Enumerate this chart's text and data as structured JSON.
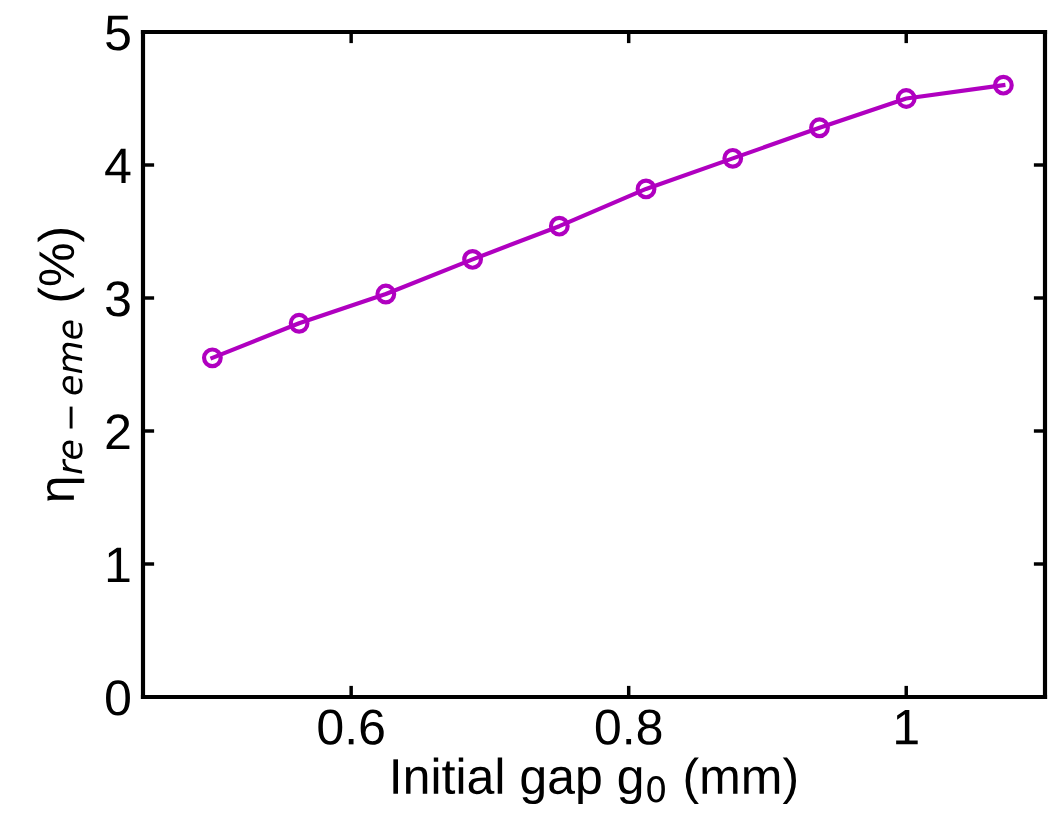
{
  "chart_data": {
    "type": "line",
    "xlabel": "Initial gap g$_{0}$ (mm)",
    "ylabel": "η$_{re−eme}$ (%)",
    "x": [
      0.5,
      0.5625,
      0.625,
      0.6875,
      0.75,
      0.8125,
      0.875,
      0.9375,
      1.0,
      1.07
    ],
    "series": [
      {
        "color": "#b000c0",
        "values": [
          2.55,
          2.81,
          3.03,
          3.29,
          3.54,
          3.82,
          4.05,
          4.28,
          4.5,
          4.6
        ]
      }
    ],
    "xlim": [
      0.45,
      1.1
    ],
    "xticks": [
      0.6,
      0.8,
      1
    ],
    "ylim": [
      0,
      5
    ],
    "yticks": [
      0,
      1,
      2,
      3,
      4,
      5
    ],
    "grid": false,
    "legend": false,
    "marker": "circle",
    "line_style": "solid"
  }
}
